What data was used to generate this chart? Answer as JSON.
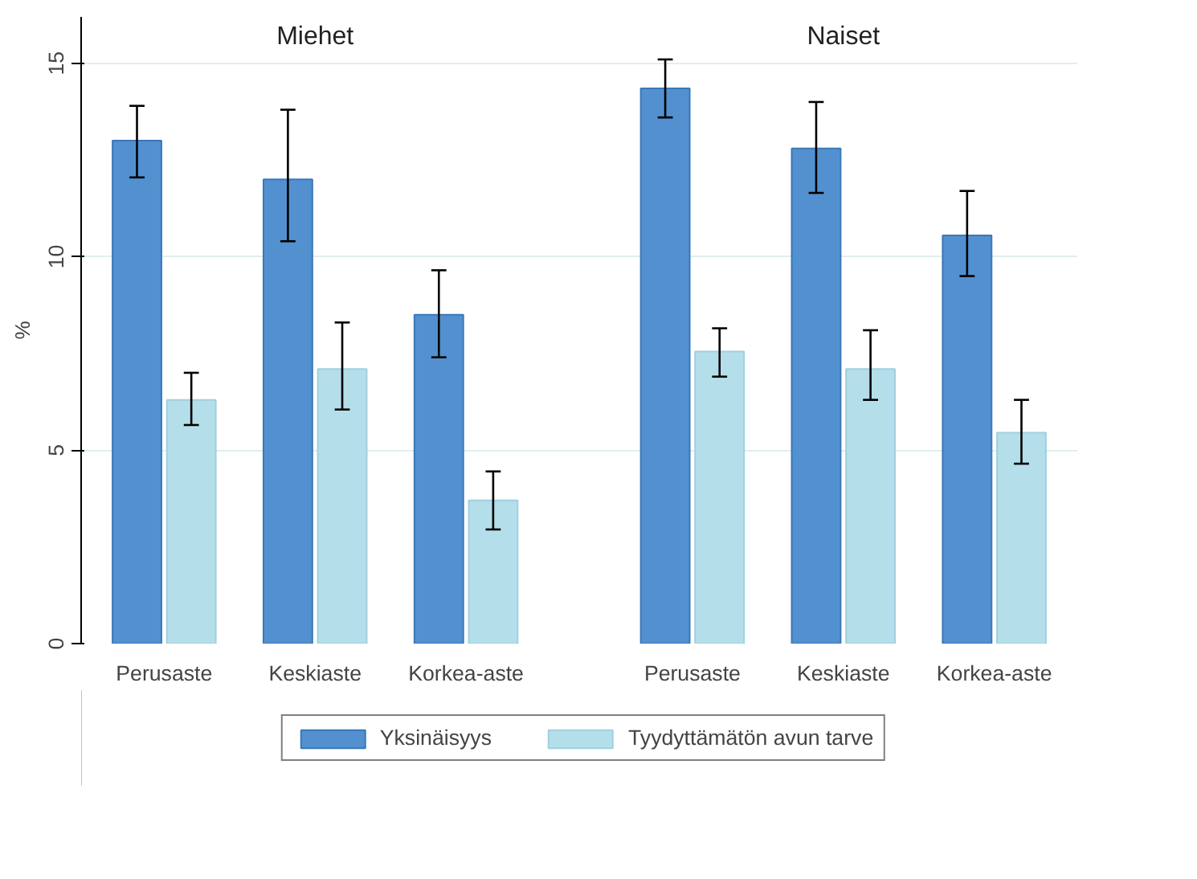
{
  "chart_data": {
    "type": "bar",
    "ylabel": "%",
    "categories": [
      "Perusaste",
      "Keskiaste",
      "Korkea-aste",
      "Perusaste",
      "Keskiaste",
      "Korkea-aste"
    ],
    "series": [
      {
        "name": "Yksinäisyys",
        "color": "#5290d0",
        "values": [
          13.0,
          12.0,
          8.5,
          14.35,
          12.8,
          10.55
        ],
        "errors": [
          [
            12.05,
            13.9
          ],
          [
            10.4,
            13.8
          ],
          [
            7.4,
            9.65
          ],
          [
            13.6,
            15.1
          ],
          [
            11.65,
            14.0
          ],
          [
            9.5,
            11.7
          ]
        ]
      },
      {
        "name": "Tyydyttämätön avun tarve",
        "color": "#b4dfea",
        "values": [
          6.3,
          7.1,
          3.7,
          7.55,
          7.1,
          5.45
        ],
        "errors": [
          [
            5.65,
            7.0
          ],
          [
            6.05,
            8.3
          ],
          [
            2.95,
            4.45
          ],
          [
            6.9,
            8.15
          ],
          [
            6.3,
            8.1
          ],
          [
            4.65,
            6.3
          ]
        ]
      }
    ],
    "annotations": [
      "Miehet",
      "Naiset"
    ],
    "ylim": [
      0,
      16.2
    ],
    "yticks": [
      0,
      5,
      10,
      15
    ],
    "grid": "y",
    "legend": "bottom"
  }
}
